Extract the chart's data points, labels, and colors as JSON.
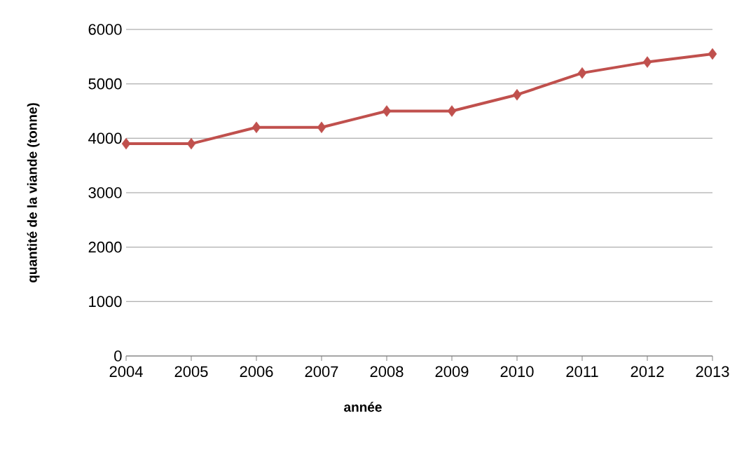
{
  "chart_data": {
    "type": "line",
    "xlabel": "année",
    "ylabel": "quantité de la viande (tonne)",
    "categories": [
      "2004",
      "2005",
      "2006",
      "2007",
      "2008",
      "2009",
      "2010",
      "2011",
      "2012",
      "2013"
    ],
    "series": [
      {
        "color": "#c0504d",
        "values": [
          3900,
          3900,
          4200,
          4200,
          4500,
          4500,
          4800,
          5200,
          5400,
          5550
        ]
      }
    ],
    "ylim": [
      0,
      6000
    ],
    "yticks": [
      0,
      1000,
      2000,
      3000,
      4000,
      5000,
      6000
    ],
    "grid": "y",
    "marker": "diamond",
    "line_style": "solid"
  }
}
